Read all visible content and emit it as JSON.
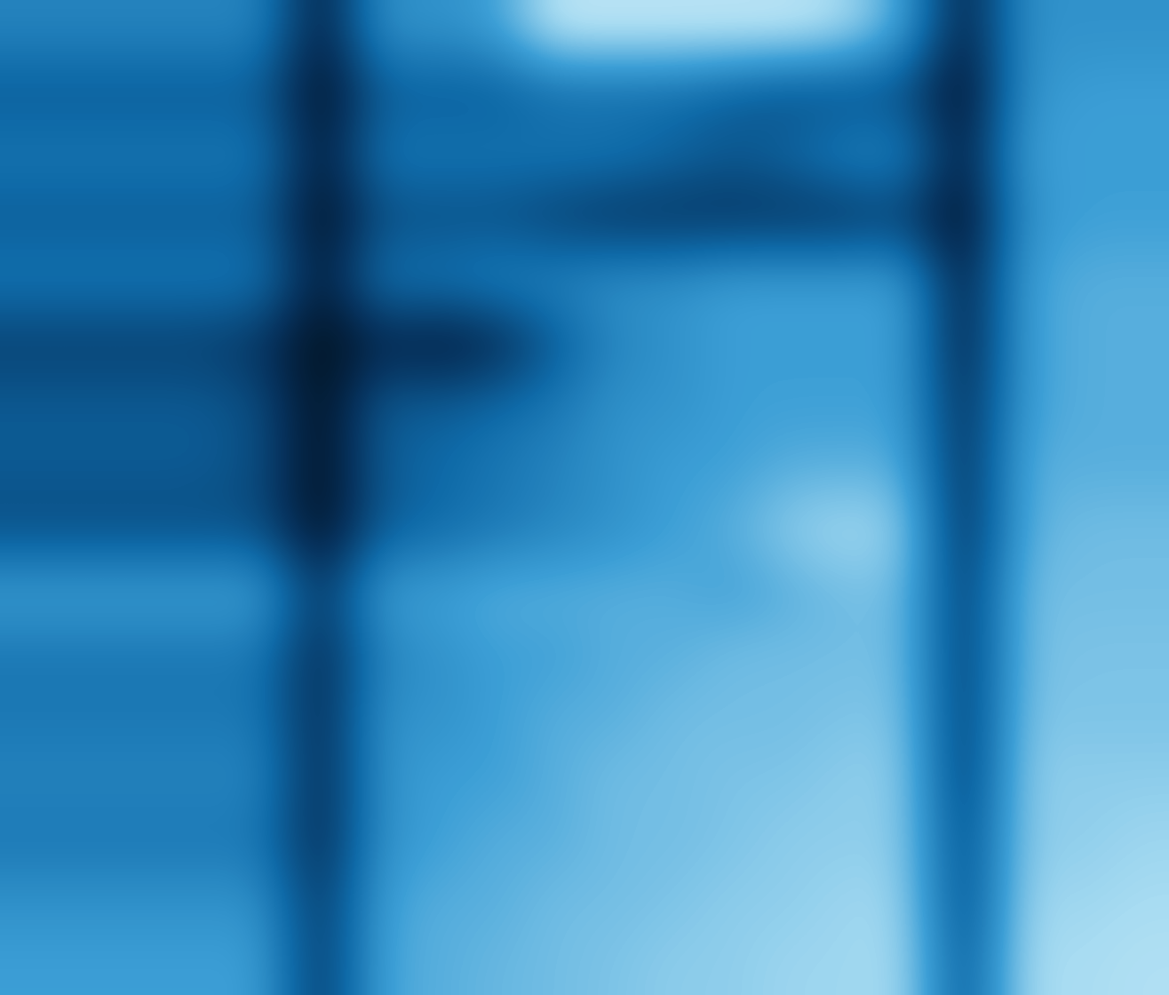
{
  "chart_data": {
    "type": "heatmap",
    "tick_labels": false,
    "value_range": [
      0,
      1
    ],
    "cells": [
      [
        0.5,
        0.5,
        0.5,
        0.5,
        0.5,
        0.1,
        0.55,
        0.55,
        0.6,
        0.85,
        0.85,
        0.85,
        0.85,
        0.85,
        0.8,
        0.6,
        0.1,
        0.55,
        0.55,
        0.55
      ],
      [
        0.35,
        0.35,
        0.35,
        0.35,
        0.35,
        0.05,
        0.35,
        0.35,
        0.35,
        0.4,
        0.4,
        0.4,
        0.35,
        0.3,
        0.3,
        0.3,
        0.05,
        0.55,
        0.6,
        0.6
      ],
      [
        0.45,
        0.45,
        0.45,
        0.45,
        0.45,
        0.1,
        0.45,
        0.45,
        0.45,
        0.45,
        0.45,
        0.4,
        0.35,
        0.4,
        0.5,
        0.5,
        0.1,
        0.6,
        0.6,
        0.6
      ],
      [
        0.35,
        0.35,
        0.35,
        0.35,
        0.35,
        0.05,
        0.3,
        0.3,
        0.3,
        0.25,
        0.2,
        0.2,
        0.2,
        0.2,
        0.2,
        0.25,
        0.05,
        0.55,
        0.6,
        0.6
      ],
      [
        0.45,
        0.45,
        0.45,
        0.45,
        0.45,
        0.1,
        0.45,
        0.45,
        0.5,
        0.5,
        0.55,
        0.55,
        0.6,
        0.6,
        0.6,
        0.6,
        0.1,
        0.6,
        0.65,
        0.65
      ],
      [
        0.25,
        0.25,
        0.25,
        0.25,
        0.2,
        0.05,
        0.15,
        0.1,
        0.15,
        0.35,
        0.5,
        0.55,
        0.6,
        0.6,
        0.6,
        0.6,
        0.1,
        0.6,
        0.65,
        0.65
      ],
      [
        0.35,
        0.35,
        0.35,
        0.35,
        0.3,
        0.05,
        0.35,
        0.35,
        0.4,
        0.45,
        0.55,
        0.55,
        0.6,
        0.6,
        0.6,
        0.6,
        0.15,
        0.6,
        0.65,
        0.65
      ],
      [
        0.35,
        0.35,
        0.35,
        0.35,
        0.3,
        0.05,
        0.35,
        0.4,
        0.45,
        0.5,
        0.55,
        0.6,
        0.6,
        0.65,
        0.65,
        0.65,
        0.15,
        0.65,
        0.65,
        0.65
      ],
      [
        0.3,
        0.3,
        0.3,
        0.3,
        0.3,
        0.05,
        0.35,
        0.4,
        0.45,
        0.5,
        0.55,
        0.6,
        0.65,
        0.75,
        0.8,
        0.75,
        0.15,
        0.65,
        0.7,
        0.7
      ],
      [
        0.6,
        0.6,
        0.6,
        0.6,
        0.6,
        0.2,
        0.6,
        0.6,
        0.65,
        0.65,
        0.65,
        0.65,
        0.6,
        0.65,
        0.7,
        0.7,
        0.2,
        0.7,
        0.7,
        0.7
      ],
      [
        0.45,
        0.45,
        0.45,
        0.45,
        0.45,
        0.15,
        0.5,
        0.55,
        0.6,
        0.6,
        0.65,
        0.65,
        0.7,
        0.7,
        0.7,
        0.7,
        0.2,
        0.7,
        0.72,
        0.72
      ],
      [
        0.45,
        0.45,
        0.45,
        0.45,
        0.45,
        0.15,
        0.55,
        0.55,
        0.6,
        0.65,
        0.65,
        0.7,
        0.7,
        0.7,
        0.72,
        0.72,
        0.2,
        0.72,
        0.72,
        0.72
      ],
      [
        0.5,
        0.5,
        0.5,
        0.5,
        0.5,
        0.15,
        0.55,
        0.6,
        0.6,
        0.65,
        0.7,
        0.7,
        0.72,
        0.72,
        0.75,
        0.75,
        0.2,
        0.75,
        0.75,
        0.75
      ],
      [
        0.45,
        0.45,
        0.45,
        0.45,
        0.45,
        0.15,
        0.55,
        0.6,
        0.65,
        0.65,
        0.7,
        0.7,
        0.72,
        0.75,
        0.75,
        0.75,
        0.25,
        0.75,
        0.75,
        0.78
      ],
      [
        0.55,
        0.55,
        0.55,
        0.55,
        0.55,
        0.2,
        0.6,
        0.65,
        0.65,
        0.7,
        0.7,
        0.72,
        0.75,
        0.75,
        0.78,
        0.78,
        0.25,
        0.78,
        0.78,
        0.8
      ],
      [
        0.6,
        0.6,
        0.6,
        0.6,
        0.6,
        0.2,
        0.62,
        0.65,
        0.68,
        0.7,
        0.72,
        0.75,
        0.75,
        0.78,
        0.78,
        0.8,
        0.3,
        0.8,
        0.8,
        0.82
      ]
    ]
  }
}
